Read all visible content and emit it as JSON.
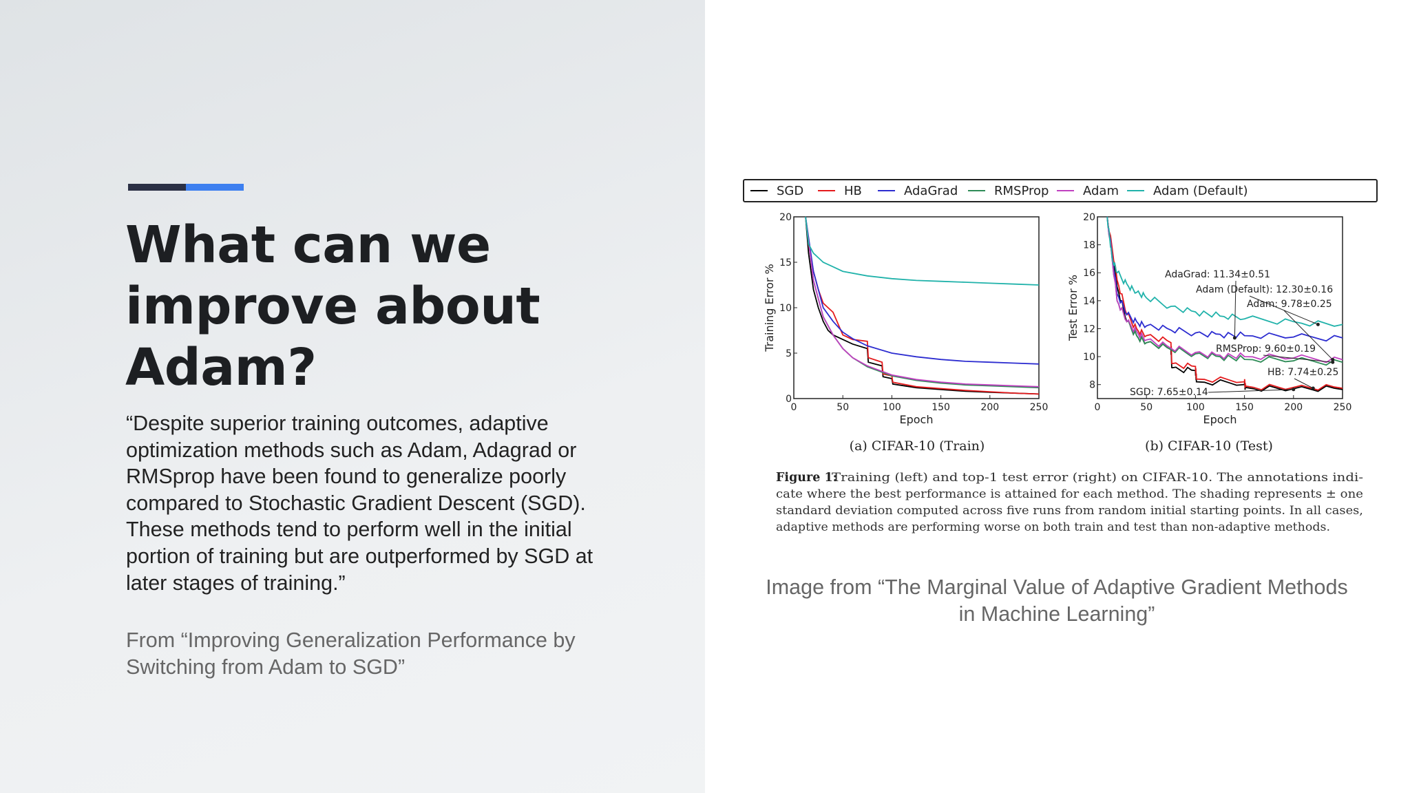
{
  "slide": {
    "title": "What can we improve about Adam?",
    "quote": "“Despite superior training outcomes, adaptive optimization methods such as Adam, Adagrad or RMSprop have been found to generalize poorly compared to Stochastic Gradient Descent (SGD). These methods tend to perform well in the initial portion of training but are outperformed by SGD at later stages of training.”",
    "source": "From “Improving Generalization Performance by Switching from Adam to SGD”",
    "image_credit": "Image from “The Marginal Value of Adaptive Gradient Methods in Machine Learning”",
    "colors": {
      "accent_dark": "#2b3045",
      "accent_blue": "#3d7ff0",
      "panel_bg": "#eef0f2"
    }
  },
  "chart_data": [
    {
      "type": "line",
      "title": "(a) CIFAR-10 (Train)",
      "xlabel": "Epoch",
      "ylabel": "Training Error %",
      "xlim": [
        0,
        250
      ],
      "ylim": [
        0,
        20
      ],
      "xticks": [
        0,
        50,
        100,
        150,
        200,
        250
      ],
      "yticks": [
        0,
        5,
        10,
        15,
        20
      ],
      "legend": [
        "SGD",
        "HB",
        "AdaGrad",
        "RMSProp",
        "Adam",
        "Adam (Default)"
      ],
      "legend_position": "top",
      "series": [
        {
          "name": "SGD",
          "color": "#000000",
          "x": [
            12,
            15,
            20,
            25,
            30,
            35,
            40,
            50,
            60,
            75,
            76,
            90,
            91,
            100,
            101,
            125,
            150,
            175,
            200,
            225,
            250
          ],
          "y": [
            20,
            16,
            12,
            10,
            8.5,
            7.5,
            7,
            6.5,
            6,
            5.5,
            4,
            3.6,
            2.4,
            2.2,
            1.6,
            1.2,
            1.0,
            0.8,
            0.7,
            0.6,
            0.5
          ]
        },
        {
          "name": "HB",
          "color": "#e41a1c",
          "x": [
            12,
            15,
            20,
            25,
            30,
            35,
            40,
            50,
            60,
            75,
            76,
            90,
            91,
            100,
            101,
            125,
            150,
            175,
            200,
            225,
            250
          ],
          "y": [
            20,
            17,
            14,
            12,
            10.5,
            10,
            9.5,
            7.0,
            6.5,
            6.3,
            4.5,
            4,
            2.7,
            2.5,
            1.8,
            1.3,
            1.1,
            0.9,
            0.75,
            0.6,
            0.5
          ]
        },
        {
          "name": "AdaGrad",
          "color": "#2c2cd0",
          "x": [
            12,
            20,
            30,
            40,
            50,
            60,
            75,
            100,
            125,
            150,
            175,
            200,
            225,
            250
          ],
          "y": [
            20,
            14,
            10,
            8.5,
            7.3,
            6.6,
            5.8,
            5.0,
            4.6,
            4.3,
            4.1,
            4.0,
            3.9,
            3.8
          ]
        },
        {
          "name": "RMSProp",
          "color": "#2e8b57",
          "x": [
            12,
            20,
            30,
            40,
            50,
            60,
            75,
            100,
            125,
            150,
            175,
            200,
            225,
            250
          ],
          "y": [
            20,
            13,
            9,
            7,
            5.5,
            4.5,
            3.5,
            2.5,
            2.0,
            1.7,
            1.5,
            1.4,
            1.3,
            1.2
          ]
        },
        {
          "name": "Adam",
          "color": "#c040c0",
          "x": [
            12,
            20,
            30,
            40,
            50,
            60,
            75,
            100,
            125,
            150,
            175,
            200,
            225,
            250
          ],
          "y": [
            20,
            13,
            9,
            7,
            5.5,
            4.5,
            3.6,
            2.6,
            2.1,
            1.8,
            1.6,
            1.5,
            1.4,
            1.3
          ]
        },
        {
          "name": "Adam (Default)",
          "color": "#20b2aa",
          "x": [
            12,
            15,
            20,
            25,
            30,
            40,
            50,
            75,
            100,
            125,
            150,
            175,
            200,
            225,
            250
          ],
          "y": [
            20,
            17,
            16,
            15.5,
            15,
            14.5,
            14,
            13.5,
            13.2,
            13.0,
            12.9,
            12.8,
            12.7,
            12.6,
            12.5
          ]
        }
      ]
    },
    {
      "type": "line",
      "title": "(b) CIFAR-10 (Test)",
      "xlabel": "Epoch",
      "ylabel": "Test Error %",
      "xlim": [
        0,
        250
      ],
      "ylim": [
        7,
        20
      ],
      "xticks": [
        0,
        50,
        100,
        150,
        200,
        250
      ],
      "yticks": [
        8,
        10,
        12,
        14,
        16,
        18,
        20
      ],
      "annotations": [
        {
          "text": "AdaGrad: 11.34±0.51",
          "x": 140,
          "y": 11.34
        },
        {
          "text": "Adam (Default): 12.30±0.16",
          "x": 225,
          "y": 12.3
        },
        {
          "text": "Adam: 9.78±0.25",
          "x": 240,
          "y": 9.78
        },
        {
          "text": "RMSProp: 9.60±0.19",
          "x": 240,
          "y": 9.6
        },
        {
          "text": "HB: 7.74±0.25",
          "x": 220,
          "y": 7.74
        },
        {
          "text": "SGD: 7.65±0.14",
          "x": 200,
          "y": 7.65
        }
      ],
      "series": [
        {
          "name": "SGD",
          "color": "#000000",
          "x": [
            10,
            20,
            30,
            40,
            50,
            75,
            76,
            100,
            101,
            150,
            151,
            200,
            250
          ],
          "y": [
            20,
            15,
            12.5,
            11.5,
            11,
            10.5,
            9.2,
            9.0,
            8.2,
            8.0,
            7.8,
            7.7,
            7.65
          ]
        },
        {
          "name": "HB",
          "color": "#e41a1c",
          "x": [
            10,
            20,
            30,
            40,
            50,
            75,
            76,
            100,
            101,
            150,
            151,
            200,
            250
          ],
          "y": [
            20,
            15.5,
            13,
            12,
            11.5,
            11,
            9.5,
            9.3,
            8.4,
            8.2,
            7.9,
            7.8,
            7.74
          ]
        },
        {
          "name": "AdaGrad",
          "color": "#2c2cd0",
          "x": [
            10,
            20,
            30,
            40,
            50,
            75,
            100,
            125,
            150,
            200,
            250
          ],
          "y": [
            20,
            14.5,
            13,
            12.5,
            12.2,
            11.9,
            11.7,
            11.6,
            11.5,
            11.4,
            11.34
          ]
        },
        {
          "name": "RMSProp",
          "color": "#2e8b57",
          "x": [
            10,
            20,
            30,
            40,
            50,
            75,
            100,
            125,
            150,
            200,
            250
          ],
          "y": [
            20,
            14,
            12.5,
            11.5,
            11,
            10.5,
            10.2,
            10.0,
            9.8,
            9.7,
            9.6
          ]
        },
        {
          "name": "Adam",
          "color": "#c040c0",
          "x": [
            10,
            20,
            30,
            40,
            50,
            75,
            100,
            125,
            150,
            200,
            250
          ],
          "y": [
            20,
            14,
            12.5,
            11.8,
            11.2,
            10.6,
            10.3,
            10.1,
            10.0,
            9.9,
            9.78
          ]
        },
        {
          "name": "Adam (Default)",
          "color": "#20b2aa",
          "x": [
            10,
            15,
            20,
            30,
            40,
            50,
            75,
            100,
            125,
            150,
            200,
            250
          ],
          "y": [
            20,
            17,
            16,
            15.2,
            14.6,
            14.2,
            13.6,
            13.2,
            12.9,
            12.7,
            12.5,
            12.3
          ]
        }
      ]
    }
  ],
  "figure": {
    "caption_label": "Figure 1:",
    "caption_lines": [
      "Training (left) and top-1 test error (right) on CIFAR-10. The annotations indi-",
      "cate where the best performance is attained for each method. The shading represents ± one",
      "standard deviation computed across five runs from random initial starting points. In all cases,",
      "adaptive methods are performing worse on both train and test than non-adaptive methods."
    ]
  }
}
